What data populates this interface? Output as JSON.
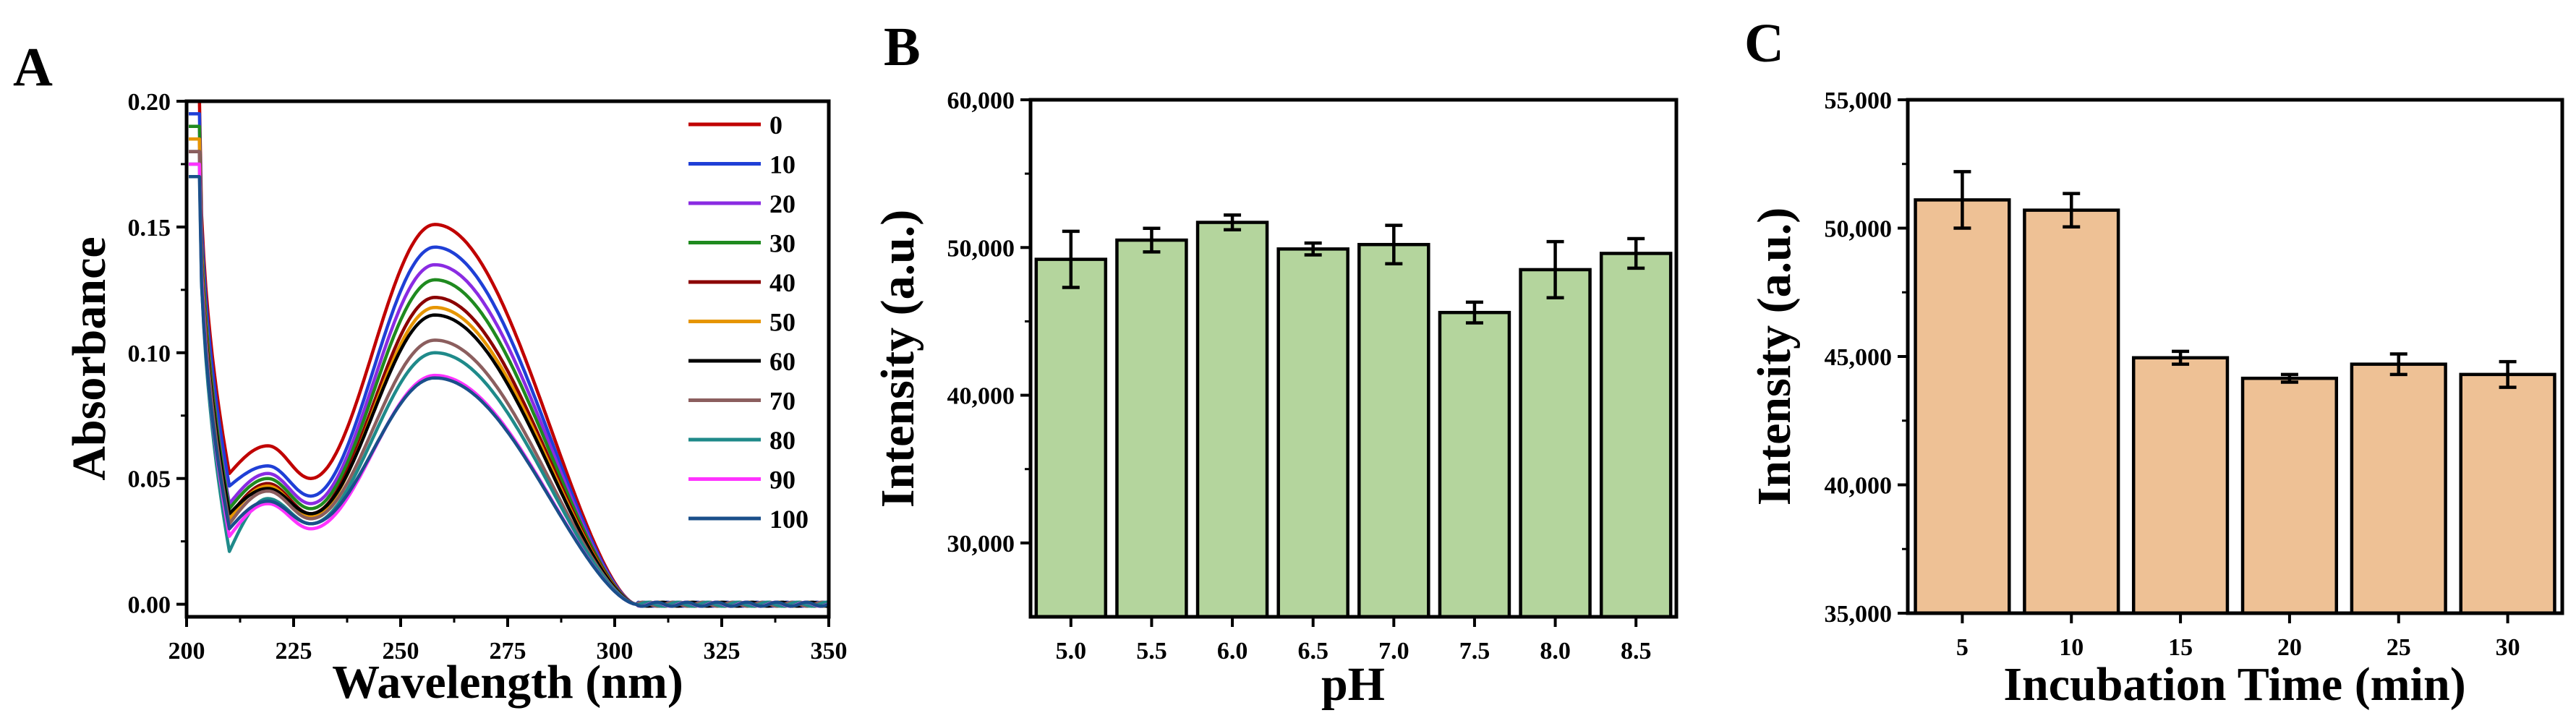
{
  "chart_data": [
    {
      "panel": "A",
      "type": "line",
      "xlabel": "Wavelength (nm)",
      "ylabel": "Absorbance",
      "xlim": [
        200,
        350
      ],
      "ylim": [
        -0.005,
        0.2
      ],
      "xticks": [
        "200",
        "225",
        "250",
        "275",
        "300",
        "325",
        "350"
      ],
      "yticks": [
        "0.00",
        "0.05",
        "0.10",
        "0.15",
        "0.20"
      ],
      "legend_position": "top-right",
      "series": [
        {
          "name": "0",
          "color": "#c00000",
          "start": 0.2,
          "dip_low": 0.052,
          "sh_peak": 0.063,
          "valley": 0.05,
          "peak": 0.151
        },
        {
          "name": "10",
          "color": "#1f3fd6",
          "start": 0.195,
          "dip_low": 0.047,
          "sh_peak": 0.055,
          "valley": 0.043,
          "peak": 0.142
        },
        {
          "name": "20",
          "color": "#8a2be2",
          "start": 0.19,
          "dip_low": 0.04,
          "sh_peak": 0.052,
          "valley": 0.04,
          "peak": 0.135
        },
        {
          "name": "30",
          "color": "#1f8a1f",
          "start": 0.19,
          "dip_low": 0.038,
          "sh_peak": 0.05,
          "valley": 0.038,
          "peak": 0.129
        },
        {
          "name": "40",
          "color": "#8b0000",
          "start": 0.185,
          "dip_low": 0.035,
          "sh_peak": 0.048,
          "valley": 0.036,
          "peak": 0.122
        },
        {
          "name": "50",
          "color": "#e69500",
          "start": 0.185,
          "dip_low": 0.034,
          "sh_peak": 0.047,
          "valley": 0.035,
          "peak": 0.118
        },
        {
          "name": "60",
          "color": "#000000",
          "start": 0.18,
          "dip_low": 0.036,
          "sh_peak": 0.046,
          "valley": 0.036,
          "peak": 0.115
        },
        {
          "name": "70",
          "color": "#8b5e5e",
          "start": 0.18,
          "dip_low": 0.032,
          "sh_peak": 0.045,
          "valley": 0.034,
          "peak": 0.105
        },
        {
          "name": "80",
          "color": "#1f8a8a",
          "start": 0.175,
          "dip_low": 0.021,
          "sh_peak": 0.042,
          "valley": 0.032,
          "peak": 0.1
        },
        {
          "name": "90",
          "color": "#ff33ff",
          "start": 0.175,
          "dip_low": 0.027,
          "sh_peak": 0.04,
          "valley": 0.03,
          "peak": 0.091
        },
        {
          "name": "100",
          "color": "#1a4f8a",
          "start": 0.17,
          "dip_low": 0.03,
          "sh_peak": 0.041,
          "valley": 0.032,
          "peak": 0.09
        }
      ]
    },
    {
      "panel": "B",
      "type": "bar",
      "xlabel": "pH",
      "ylabel": "Intensity (a.u.)",
      "ylim": [
        25000,
        60000
      ],
      "yticks": [
        "30,000",
        "40,000",
        "50,000",
        "60,000"
      ],
      "ytick_values": [
        30000,
        40000,
        50000,
        60000
      ],
      "bar_color": "#b4d59d",
      "categories": [
        "5.0",
        "5.5",
        "6.0",
        "6.5",
        "7.0",
        "7.5",
        "8.0",
        "8.5"
      ],
      "values": [
        49200,
        50500,
        51700,
        49900,
        50200,
        45600,
        48500,
        49600
      ],
      "errors": [
        1900,
        800,
        500,
        400,
        1300,
        700,
        1900,
        1000
      ]
    },
    {
      "panel": "C",
      "type": "bar",
      "xlabel": "Incubation Time (min)",
      "ylabel": "Intensity (a.u.)",
      "ylim": [
        35000,
        55000
      ],
      "yticks": [
        "35,000",
        "40,000",
        "45,000",
        "50,000",
        "55,000"
      ],
      "ytick_values": [
        35000,
        40000,
        45000,
        50000,
        55000
      ],
      "bar_color": "#eec195",
      "categories": [
        "5",
        "10",
        "15",
        "20",
        "25",
        "30"
      ],
      "values": [
        51100,
        50700,
        44950,
        44150,
        44700,
        44300
      ],
      "errors": [
        1100,
        650,
        250,
        150,
        400,
        500
      ]
    }
  ]
}
